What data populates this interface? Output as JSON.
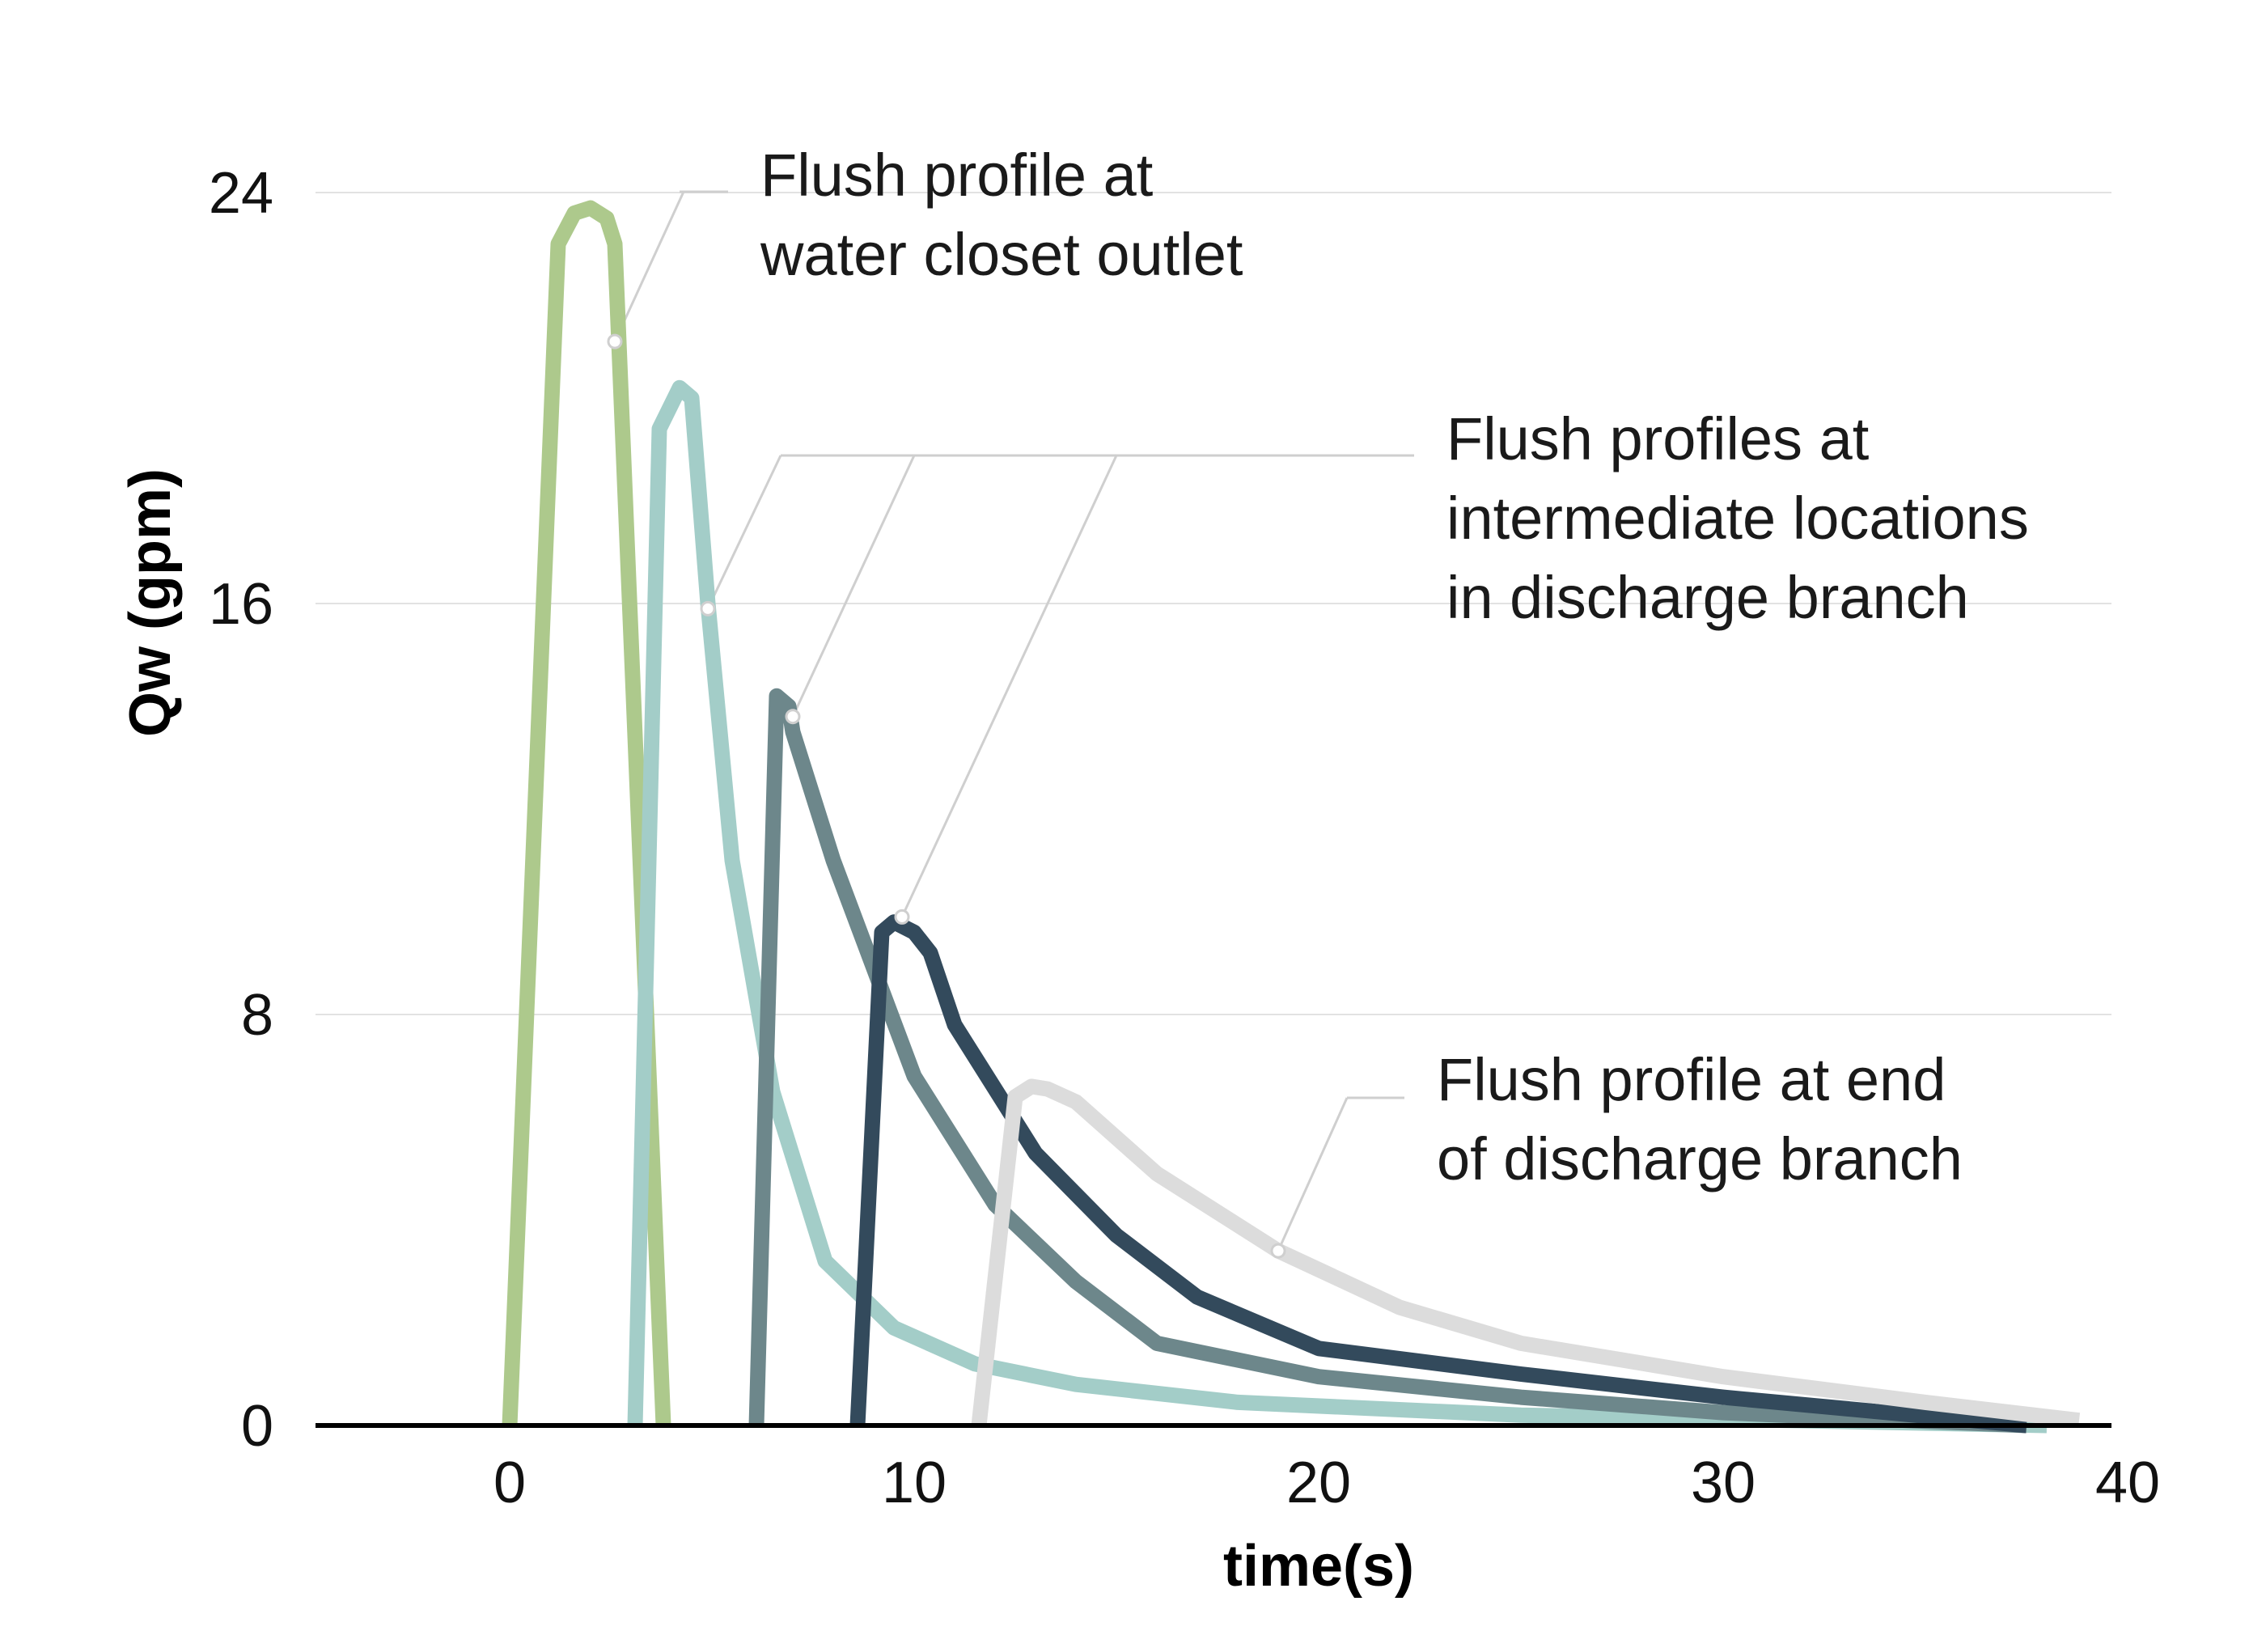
{
  "chart_data": {
    "type": "line",
    "xlabel": "time(s)",
    "ylabel": "Qw (gpm)",
    "xlim": [
      -4.8,
      39.6
    ],
    "ylim": [
      0,
      24
    ],
    "x_ticks": [
      0,
      10,
      20,
      30,
      40
    ],
    "y_ticks": [
      0,
      8,
      16,
      24
    ],
    "grid": "horizontal",
    "series": [
      {
        "color": "#adc98c",
        "x": [
          0,
          1.2,
          1.6,
          2.0,
          2.4,
          2.6,
          3.8
        ],
        "y": [
          0,
          23.0,
          23.6,
          23.7,
          23.5,
          23.0,
          0
        ]
      },
      {
        "color": "#a3cdc8",
        "x": [
          3.1,
          3.7,
          4.2,
          4.5,
          4.9,
          5.5,
          6.5,
          7.8,
          9.5,
          11.5,
          14,
          18,
          25,
          38
        ],
        "y": [
          0,
          19.4,
          20.2,
          20.0,
          16,
          11,
          6.5,
          3.2,
          1.9,
          1.2,
          0.8,
          0.45,
          0.2,
          0
        ]
      },
      {
        "color": "#6d878b",
        "x": [
          6.1,
          6.6,
          6.9,
          7.0,
          8.0,
          10.0,
          12.0,
          14.0,
          16.0,
          20.0,
          25.0,
          30.0,
          37.5
        ],
        "y": [
          0,
          14.2,
          14.0,
          13.5,
          11.0,
          6.8,
          4.3,
          2.8,
          1.6,
          0.95,
          0.55,
          0.25,
          0
        ]
      },
      {
        "color": "#334a5c",
        "x": [
          8.6,
          9.2,
          9.5,
          10.0,
          10.4,
          11.0,
          13.0,
          15.0,
          17.0,
          20.0,
          25.0,
          30.0,
          37.5
        ],
        "y": [
          0,
          9.6,
          9.8,
          9.6,
          9.2,
          7.8,
          5.3,
          3.7,
          2.5,
          1.5,
          1.0,
          0.55,
          0
        ]
      },
      {
        "color": "#dcdcdc",
        "x": [
          11.6,
          12.5,
          12.9,
          13.3,
          14.0,
          16.0,
          19.0,
          22.0,
          25.0,
          30.0,
          35.0,
          38.8
        ],
        "y": [
          0,
          6.4,
          6.6,
          6.55,
          6.3,
          4.9,
          3.4,
          2.3,
          1.6,
          0.95,
          0.45,
          0.1
        ]
      }
    ],
    "annotations": [
      {
        "lines": [
          "Flush profile at",
          "water closet outlet"
        ],
        "points": [
          [
            2.6,
            21.1
          ]
        ]
      },
      {
        "lines": [
          "Flush profiles at",
          "intermediate locations",
          "in discharge branch"
        ],
        "points": [
          [
            4.9,
            15.9
          ],
          [
            7.0,
            13.8
          ],
          [
            9.7,
            9.9
          ]
        ]
      },
      {
        "lines": [
          "Flush profile at end",
          "of discharge branch"
        ],
        "points": [
          [
            19.0,
            3.4
          ]
        ]
      }
    ]
  }
}
